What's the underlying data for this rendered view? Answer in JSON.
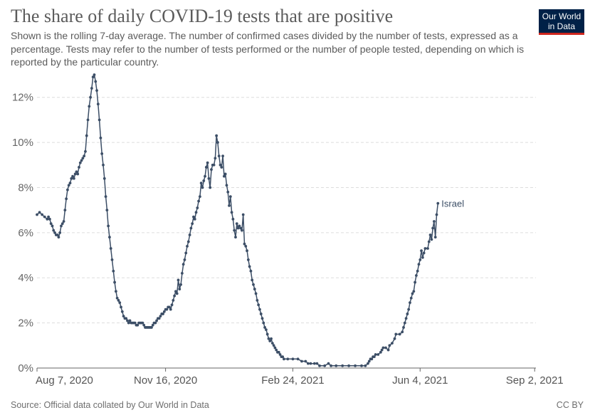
{
  "header": {
    "title": "The share of daily COVID-19 tests that are positive",
    "subtitle": "Shown is the rolling 7-day average. The number of confirmed cases divided by the number of tests, expressed as a percentage. Tests may refer to the number of tests performed or the number of people tested, depending on which is reported by the particular country."
  },
  "logo": {
    "line1": "Our World",
    "line2": "in Data"
  },
  "footer": {
    "source": "Source: Official data collated by Our World in Data",
    "license": "CC BY"
  },
  "colors": {
    "line": "#3c4e66",
    "grid": "#dddddd",
    "axis": "#666666"
  },
  "chart_data": {
    "type": "line",
    "title": "The share of daily COVID-19 tests that are positive",
    "xlabel": "",
    "ylabel": "",
    "ylim": [
      0,
      13
    ],
    "y_ticks": [
      0,
      2,
      4,
      6,
      8,
      10,
      12
    ],
    "y_tick_labels": [
      "0%",
      "2%",
      "4%",
      "6%",
      "8%",
      "10%",
      "12%"
    ],
    "x_range_days": [
      0,
      392
    ],
    "x_ticks": [
      {
        "day": 0,
        "label": "Aug 7, 2020"
      },
      {
        "day": 101,
        "label": "Nov 16, 2020"
      },
      {
        "day": 201,
        "label": "Feb 24, 2021"
      },
      {
        "day": 301,
        "label": "Jun 4, 2021"
      },
      {
        "day": 391,
        "label": "Sep 2, 2021"
      }
    ],
    "series": [
      {
        "name": "Israel",
        "x_unit": "days since Aug 7, 2020",
        "points": [
          [
            0,
            6.8
          ],
          [
            2,
            6.9
          ],
          [
            4,
            6.8
          ],
          [
            6,
            6.7
          ],
          [
            8,
            6.6
          ],
          [
            9,
            6.7
          ],
          [
            10,
            6.6
          ],
          [
            11,
            6.4
          ],
          [
            12,
            6.3
          ],
          [
            13,
            6.1
          ],
          [
            14,
            6.0
          ],
          [
            15,
            5.9
          ],
          [
            16,
            5.9
          ],
          [
            17,
            5.8
          ],
          [
            18,
            6.0
          ],
          [
            19,
            6.3
          ],
          [
            20,
            6.4
          ],
          [
            21,
            6.5
          ],
          [
            22,
            7.0
          ],
          [
            23,
            7.5
          ],
          [
            24,
            7.9
          ],
          [
            25,
            8.1
          ],
          [
            26,
            8.2
          ],
          [
            27,
            8.4
          ],
          [
            28,
            8.5
          ],
          [
            29,
            8.4
          ],
          [
            30,
            8.6
          ],
          [
            31,
            8.7
          ],
          [
            32,
            8.6
          ],
          [
            33,
            8.9
          ],
          [
            34,
            9.1
          ],
          [
            35,
            9.2
          ],
          [
            36,
            9.3
          ],
          [
            37,
            9.4
          ],
          [
            38,
            9.6
          ],
          [
            39,
            10.3
          ],
          [
            40,
            11.0
          ],
          [
            41,
            11.6
          ],
          [
            42,
            12.0
          ],
          [
            43,
            12.4
          ],
          [
            44,
            12.9
          ],
          [
            45,
            13.0
          ],
          [
            46,
            12.7
          ],
          [
            47,
            12.3
          ],
          [
            48,
            11.7
          ],
          [
            49,
            11.0
          ],
          [
            50,
            10.2
          ],
          [
            51,
            9.5
          ],
          [
            52,
            9.0
          ],
          [
            53,
            8.4
          ],
          [
            54,
            7.6
          ],
          [
            55,
            7.0
          ],
          [
            56,
            6.3
          ],
          [
            57,
            5.8
          ],
          [
            58,
            5.3
          ],
          [
            59,
            4.8
          ],
          [
            60,
            4.3
          ],
          [
            61,
            3.8
          ],
          [
            62,
            3.4
          ],
          [
            63,
            3.1
          ],
          [
            64,
            3.0
          ],
          [
            65,
            2.9
          ],
          [
            66,
            2.7
          ],
          [
            67,
            2.5
          ],
          [
            68,
            2.3
          ],
          [
            69,
            2.2
          ],
          [
            70,
            2.2
          ],
          [
            71,
            2.1
          ],
          [
            72,
            2.0
          ],
          [
            73,
            2.1
          ],
          [
            74,
            2.0
          ],
          [
            75,
            2.0
          ],
          [
            76,
            2.0
          ],
          [
            77,
            2.0
          ],
          [
            78,
            1.9
          ],
          [
            79,
            1.9
          ],
          [
            80,
            2.0
          ],
          [
            81,
            2.0
          ],
          [
            82,
            2.0
          ],
          [
            83,
            2.0
          ],
          [
            84,
            1.9
          ],
          [
            85,
            1.8
          ],
          [
            86,
            1.8
          ],
          [
            87,
            1.8
          ],
          [
            88,
            1.8
          ],
          [
            89,
            1.8
          ],
          [
            90,
            1.8
          ],
          [
            91,
            1.9
          ],
          [
            92,
            2.0
          ],
          [
            93,
            2.0
          ],
          [
            94,
            2.1
          ],
          [
            95,
            2.2
          ],
          [
            96,
            2.2
          ],
          [
            97,
            2.3
          ],
          [
            98,
            2.4
          ],
          [
            99,
            2.4
          ],
          [
            100,
            2.5
          ],
          [
            101,
            2.6
          ],
          [
            102,
            2.6
          ],
          [
            103,
            2.7
          ],
          [
            104,
            2.7
          ],
          [
            105,
            2.6
          ],
          [
            106,
            2.8
          ],
          [
            107,
            3.0
          ],
          [
            108,
            3.2
          ],
          [
            109,
            3.4
          ],
          [
            110,
            3.3
          ],
          [
            111,
            3.9
          ],
          [
            112,
            3.5
          ],
          [
            113,
            3.7
          ],
          [
            114,
            4.2
          ],
          [
            115,
            4.6
          ],
          [
            116,
            4.8
          ],
          [
            117,
            5.1
          ],
          [
            118,
            5.4
          ],
          [
            119,
            5.6
          ],
          [
            120,
            5.9
          ],
          [
            121,
            6.2
          ],
          [
            122,
            6.4
          ],
          [
            123,
            6.7
          ],
          [
            124,
            6.6
          ],
          [
            125,
            6.9
          ],
          [
            126,
            7.1
          ],
          [
            127,
            7.4
          ],
          [
            128,
            7.6
          ],
          [
            129,
            8.2
          ],
          [
            130,
            8.0
          ],
          [
            131,
            8.3
          ],
          [
            132,
            8.5
          ],
          [
            133,
            8.9
          ],
          [
            134,
            9.1
          ],
          [
            135,
            8.4
          ],
          [
            136,
            8.0
          ],
          [
            137,
            8.8
          ],
          [
            138,
            9.0
          ],
          [
            139,
            9.0
          ],
          [
            140,
            9.3
          ],
          [
            141,
            10.3
          ],
          [
            142,
            10.0
          ],
          [
            143,
            9.4
          ],
          [
            144,
            9.0
          ],
          [
            145,
            8.9
          ],
          [
            146,
            9.4
          ],
          [
            147,
            8.5
          ],
          [
            148,
            8.6
          ],
          [
            149,
            8.1
          ],
          [
            150,
            7.8
          ],
          [
            151,
            7.2
          ],
          [
            152,
            7.6
          ],
          [
            153,
            6.9
          ],
          [
            154,
            6.6
          ],
          [
            155,
            6.1
          ],
          [
            156,
            5.8
          ],
          [
            157,
            6.4
          ],
          [
            158,
            6.2
          ],
          [
            159,
            6.3
          ],
          [
            160,
            6.2
          ],
          [
            161,
            6.1
          ],
          [
            162,
            6.8
          ],
          [
            163,
            5.5
          ],
          [
            164,
            5.4
          ],
          [
            165,
            5.2
          ],
          [
            166,
            4.8
          ],
          [
            167,
            4.5
          ],
          [
            168,
            4.3
          ],
          [
            169,
            3.9
          ],
          [
            170,
            3.7
          ],
          [
            171,
            3.5
          ],
          [
            172,
            3.3
          ],
          [
            173,
            3.0
          ],
          [
            174,
            2.8
          ],
          [
            175,
            2.6
          ],
          [
            176,
            2.4
          ],
          [
            177,
            2.2
          ],
          [
            178,
            2.0
          ],
          [
            179,
            1.8
          ],
          [
            180,
            1.7
          ],
          [
            181,
            1.5
          ],
          [
            182,
            1.3
          ],
          [
            183,
            1.2
          ],
          [
            184,
            1.3
          ],
          [
            185,
            1.1
          ],
          [
            186,
            1.0
          ],
          [
            187,
            0.9
          ],
          [
            188,
            0.8
          ],
          [
            189,
            0.7
          ],
          [
            190,
            0.7
          ],
          [
            191,
            0.6
          ],
          [
            192,
            0.5
          ],
          [
            193,
            0.5
          ],
          [
            194,
            0.4
          ],
          [
            197,
            0.4
          ],
          [
            201,
            0.4
          ],
          [
            205,
            0.4
          ],
          [
            208,
            0.3
          ],
          [
            211,
            0.3
          ],
          [
            213,
            0.2
          ],
          [
            215,
            0.2
          ],
          [
            218,
            0.2
          ],
          [
            220,
            0.2
          ],
          [
            222,
            0.1
          ],
          [
            226,
            0.1
          ],
          [
            229,
            0.2
          ],
          [
            231,
            0.1
          ],
          [
            235,
            0.1
          ],
          [
            240,
            0.1
          ],
          [
            245,
            0.1
          ],
          [
            250,
            0.1
          ],
          [
            255,
            0.1
          ],
          [
            258,
            0.1
          ],
          [
            260,
            0.2
          ],
          [
            261,
            0.3
          ],
          [
            262,
            0.4
          ],
          [
            263,
            0.4
          ],
          [
            264,
            0.5
          ],
          [
            265,
            0.5
          ],
          [
            266,
            0.6
          ],
          [
            268,
            0.6
          ],
          [
            270,
            0.7
          ],
          [
            271,
            0.8
          ],
          [
            272,
            0.9
          ],
          [
            274,
            0.9
          ],
          [
            276,
            0.8
          ],
          [
            277,
            1.0
          ],
          [
            279,
            1.1
          ],
          [
            281,
            1.3
          ],
          [
            282,
            1.5
          ],
          [
            285,
            1.5
          ],
          [
            287,
            1.6
          ],
          [
            288,
            1.8
          ],
          [
            289,
            2.0
          ],
          [
            290,
            2.2
          ],
          [
            291,
            2.4
          ],
          [
            292,
            2.6
          ],
          [
            293,
            2.9
          ],
          [
            294,
            3.1
          ],
          [
            295,
            3.3
          ],
          [
            296,
            3.4
          ],
          [
            297,
            3.8
          ],
          [
            298,
            4.1
          ],
          [
            299,
            4.3
          ],
          [
            300,
            4.6
          ],
          [
            301,
            4.8
          ],
          [
            302,
            5.2
          ],
          [
            303,
            4.9
          ],
          [
            304,
            5.1
          ],
          [
            305,
            5.3
          ],
          [
            307,
            5.3
          ],
          [
            308,
            5.6
          ],
          [
            309,
            5.9
          ],
          [
            310,
            5.7
          ],
          [
            311,
            6.2
          ],
          [
            312,
            6.5
          ],
          [
            313,
            5.8
          ],
          [
            314,
            6.8
          ],
          [
            315,
            7.3
          ]
        ],
        "end_label": "Israel"
      }
    ]
  }
}
